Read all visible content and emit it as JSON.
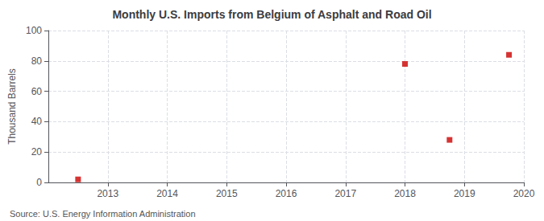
{
  "chart_data": {
    "type": "scatter",
    "title": "Monthly U.S. Imports from Belgium of Asphalt and Road Oil",
    "ylabel": "Thousand Barrels",
    "annotations": [
      "Source: U.S. Energy Information Administration"
    ],
    "x": [
      2012.5,
      2018.0,
      2018.75,
      2019.75
    ],
    "values": [
      2,
      78,
      28,
      84
    ],
    "color": "#cc0000",
    "marker": "square",
    "xlim": [
      2012,
      2020
    ],
    "xticks": [
      2013,
      2014,
      2015,
      2016,
      2017,
      2018,
      2019,
      2020
    ],
    "ylim": [
      0,
      100
    ],
    "yticks": [
      0,
      20,
      40,
      60,
      80,
      100
    ],
    "grid": true
  }
}
